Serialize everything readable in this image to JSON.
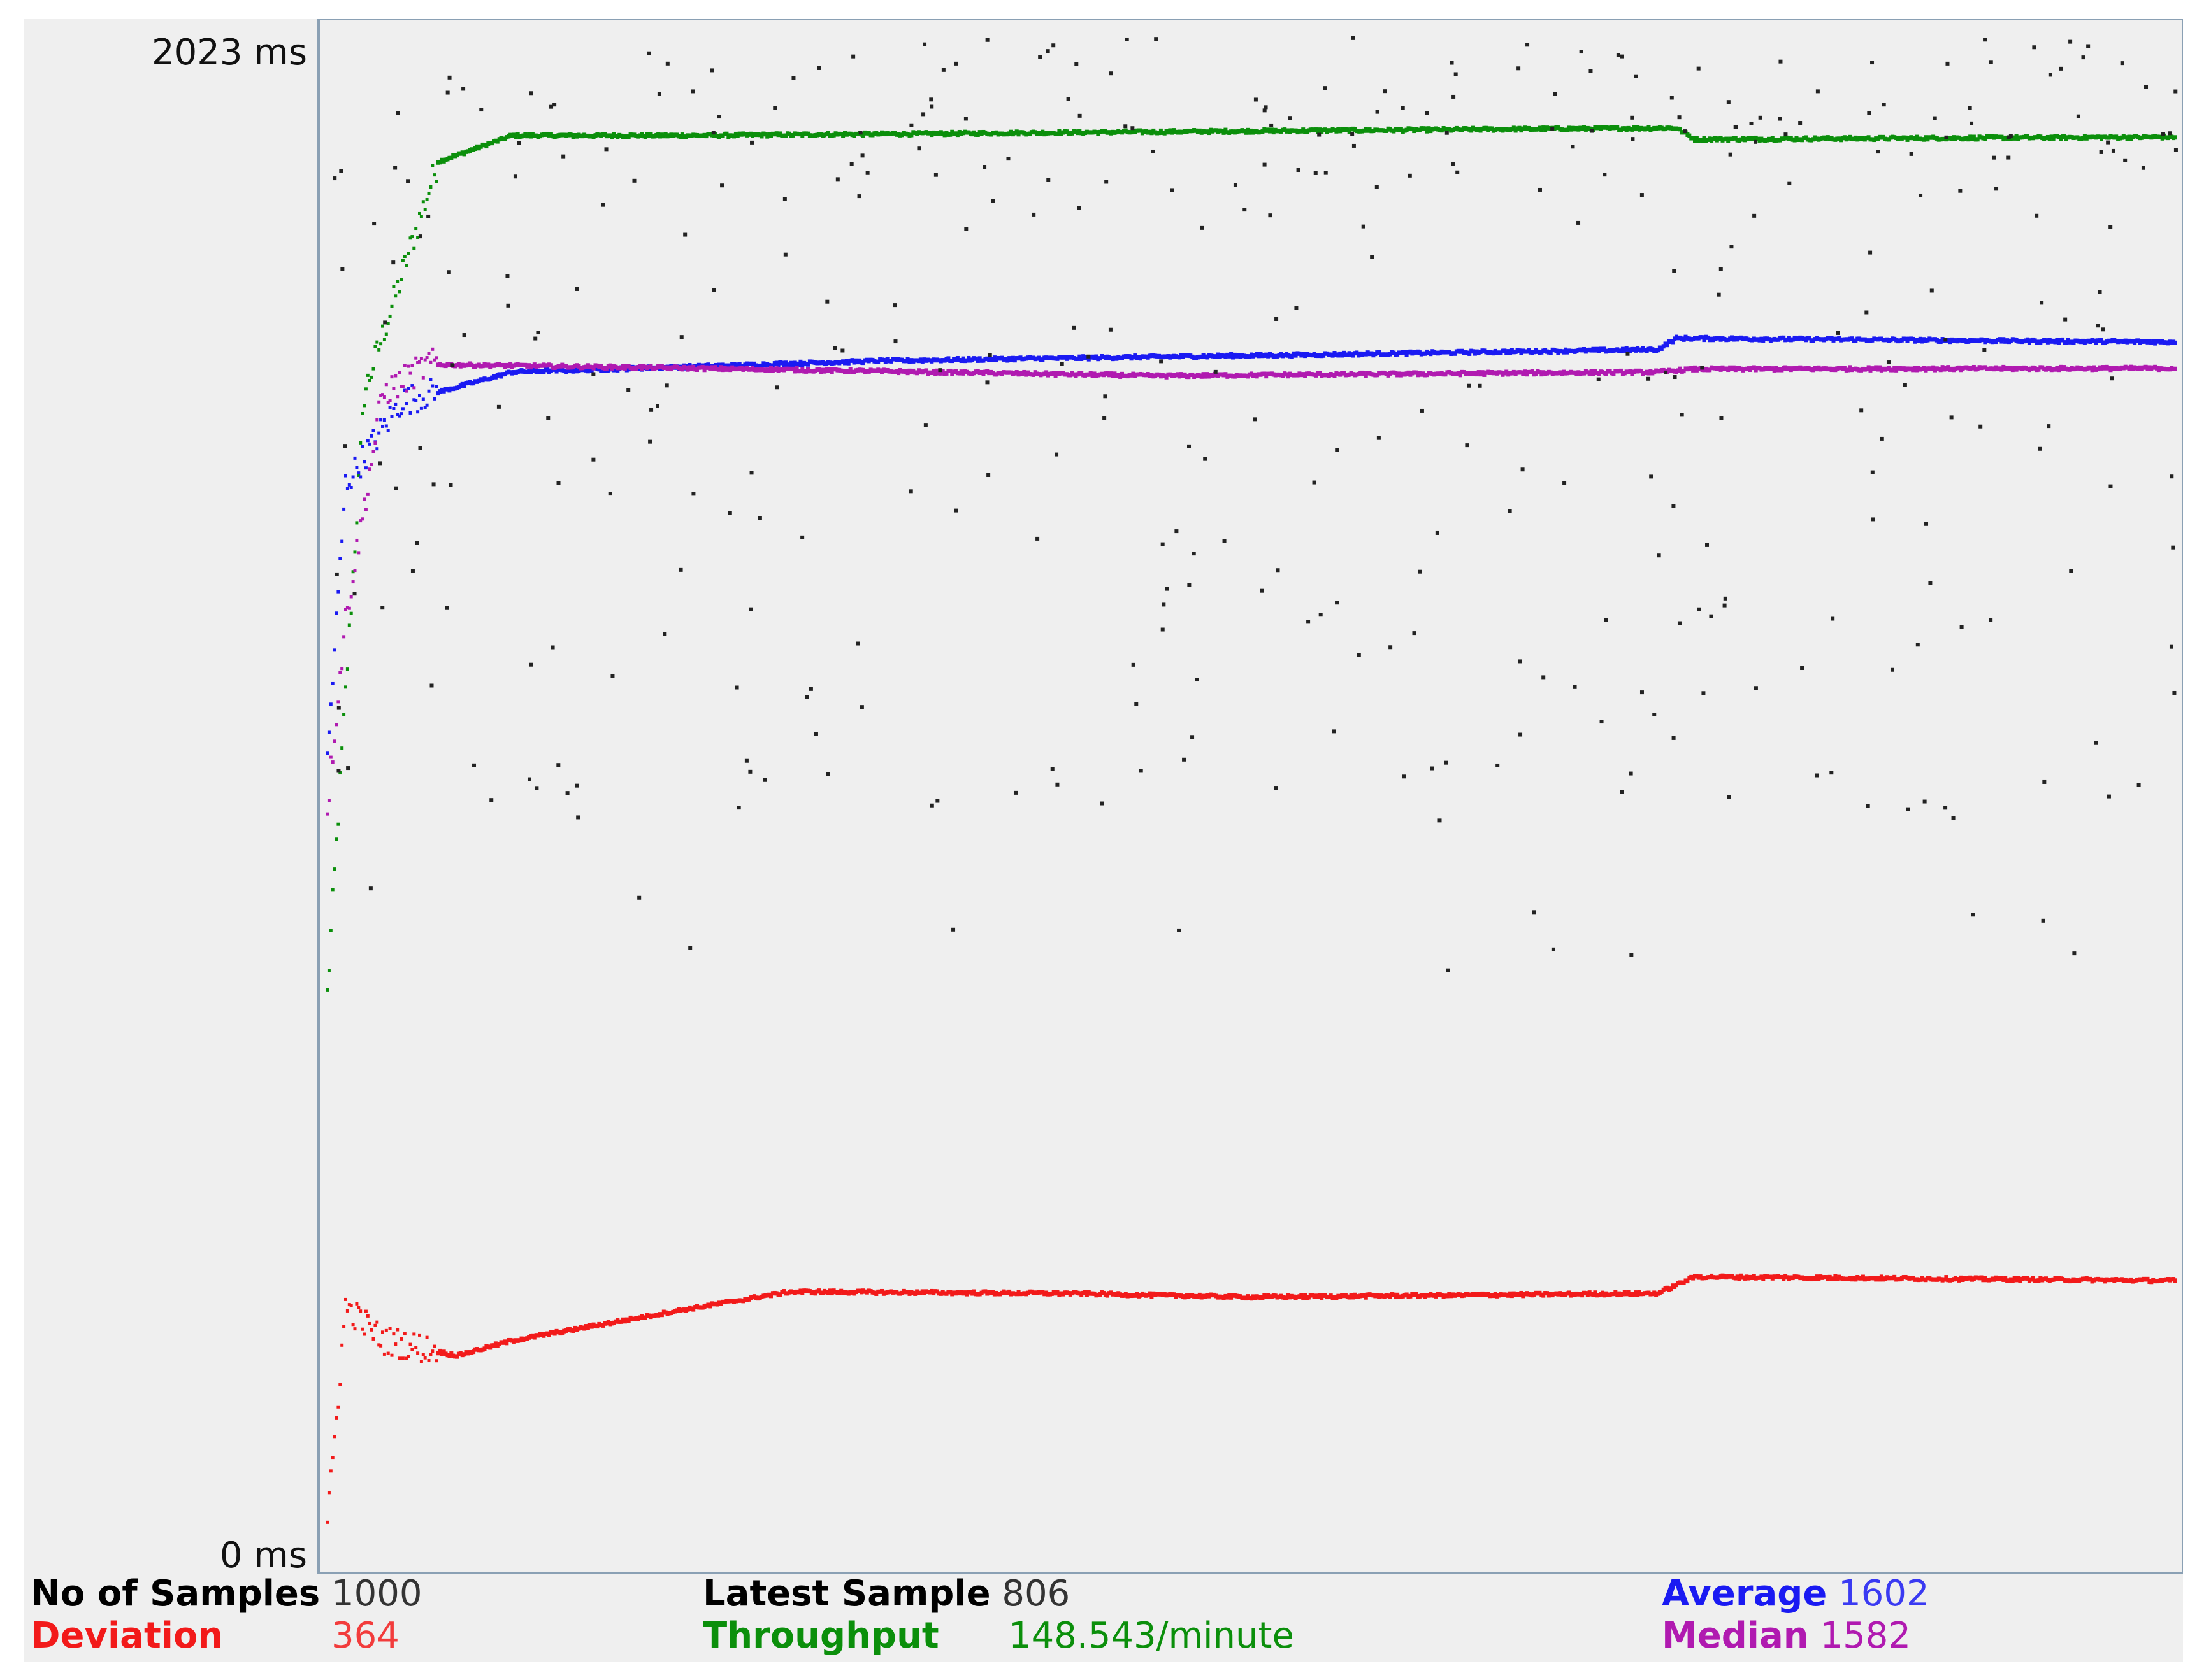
{
  "chart_data": {
    "type": "scatter",
    "title": "",
    "y_axis": {
      "min_label": "0 ms",
      "max_label": "2023 ms",
      "min": 0,
      "max": 2023
    },
    "x_axis": {
      "min": 0,
      "max": 1000
    },
    "grid": false,
    "colors": {
      "data": "#222222",
      "average": "#1a1af2",
      "median": "#b01ab0",
      "deviation": "#f21a1a",
      "throughput": "#0b8f0b",
      "value_red": "#f23c3c",
      "value_green": "#0b8f0b",
      "value_blue": "#3a3af2",
      "value_magenta": "#b01ab0"
    },
    "series_summary": {
      "average": [
        [
          0,
          1080
        ],
        [
          10,
          1450
        ],
        [
          40,
          1560
        ],
        [
          100,
          1600
        ],
        [
          300,
          1615
        ],
        [
          500,
          1622
        ],
        [
          720,
          1630
        ],
        [
          730,
          1645
        ],
        [
          1000,
          1640
        ]
      ],
      "median": [
        [
          0,
          1020
        ],
        [
          10,
          1270
        ],
        [
          30,
          1570
        ],
        [
          55,
          1610
        ],
        [
          200,
          1605
        ],
        [
          450,
          1595
        ],
        [
          720,
          1600
        ],
        [
          740,
          1604
        ],
        [
          1000,
          1605
        ]
      ],
      "deviation": [
        [
          0,
          60
        ],
        [
          10,
          355
        ],
        [
          30,
          310
        ],
        [
          70,
          290
        ],
        [
          100,
          310
        ],
        [
          190,
          350
        ],
        [
          250,
          375
        ],
        [
          400,
          373
        ],
        [
          500,
          368
        ],
        [
          720,
          373
        ],
        [
          740,
          395
        ],
        [
          1000,
          390
        ]
      ],
      "throughput": [
        [
          0,
          770
        ],
        [
          20,
          1570
        ],
        [
          60,
          1880
        ],
        [
          100,
          1915
        ],
        [
          200,
          1915
        ],
        [
          450,
          1920
        ],
        [
          730,
          1925
        ],
        [
          740,
          1910
        ],
        [
          1000,
          1913
        ]
      ]
    }
  },
  "stats": {
    "samples_label": "No of Samples",
    "samples_value": "1000",
    "latest_label": "Latest Sample",
    "latest_value": "806",
    "average_label": "Average",
    "average_value": "1602",
    "deviation_label": "Deviation",
    "deviation_value": "364",
    "throughput_label": "Throughput",
    "throughput_value": "148.543/minute",
    "median_label": "Median",
    "median_value": "1582"
  }
}
